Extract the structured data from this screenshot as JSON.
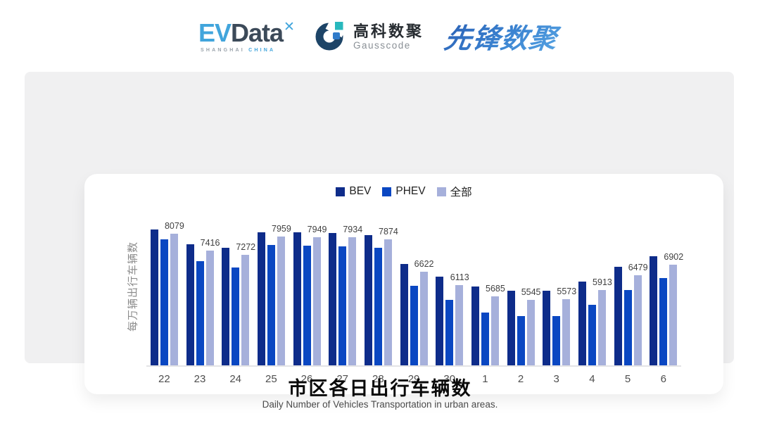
{
  "header": {
    "evdata": {
      "ev": "EV",
      "data": "Data",
      "mark": "✕",
      "sub_left": "SHANGHAI",
      "sub_right": "CHINA"
    },
    "gausscode": {
      "cn": "高科数聚",
      "en": "Gausscode"
    },
    "pioneer": {
      "text": "先锋数聚"
    }
  },
  "chart_card": {
    "y_axis_label": "每万辆出行车辆数",
    "legend": [
      {
        "id": "bev",
        "label": "BEV",
        "color": "#0e2c8a"
      },
      {
        "id": "phev",
        "label": "PHEV",
        "color": "#0a47c2"
      },
      {
        "id": "all",
        "label": "全部",
        "color": "#a6b0db"
      }
    ]
  },
  "chart_data": {
    "type": "bar",
    "title": "市区各日出行车辆数",
    "ylabel": "每万辆出行车辆数",
    "xlabel": "",
    "legend_position": "top",
    "grid": false,
    "ylim": [
      3000,
      8500
    ],
    "categories": [
      "22",
      "23",
      "24",
      "25",
      "26",
      "27",
      "28",
      "29",
      "30",
      "1",
      "2",
      "3",
      "4",
      "5",
      "6"
    ],
    "series": [
      {
        "id": "bev",
        "name": "BEV",
        "color": "#0e2c8a",
        "show_value_labels": false,
        "values": [
          8233,
          7667,
          7550,
          8140,
          8130,
          8115,
          8036,
          6919,
          6426,
          6044,
          5885,
          5900,
          6245,
          6795,
          7207
        ]
      },
      {
        "id": "phev",
        "name": "PHEV",
        "color": "#0a47c2",
        "show_value_labels": false,
        "values": [
          7855,
          7011,
          6778,
          7643,
          7625,
          7602,
          7550,
          6090,
          5527,
          5045,
          4913,
          4914,
          5362,
          5920,
          6370
        ]
      },
      {
        "id": "all",
        "name": "全部",
        "color": "#a6b0db",
        "show_value_labels": true,
        "values": [
          8079,
          7416,
          7272,
          7959,
          7949,
          7934,
          7874,
          6622,
          6113,
          5685,
          5545,
          5573,
          5913,
          6479,
          6902
        ]
      }
    ]
  },
  "footer": {
    "title": "市区各日出行车辆数",
    "subtitle": "Daily Number of Vehicles Transportation in urban areas."
  },
  "colors": {
    "bev": "#0e2c8a",
    "phev": "#0a47c2",
    "all": "#a6b0db",
    "panel_bg": "#f0f0f1",
    "card_bg": "#ffffff",
    "axis_line": "#e4e4e6",
    "logo_blue": "#41a5dc",
    "logo_dark": "#3c4a59",
    "pioneer_blue": "#2f7bce"
  }
}
